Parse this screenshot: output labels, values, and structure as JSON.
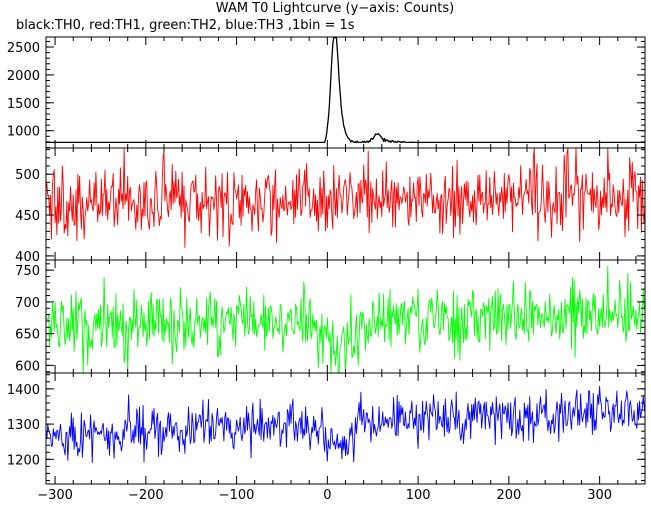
{
  "title": "WAM T0 Lightcurve (y−axis: Counts)",
  "subtitle": "black:TH0, red:TH1, green:TH2, blue:TH3 ,1bin = 1s",
  "chart_data": {
    "type": "line",
    "title": "WAM T0 Lightcurve (y−axis: Counts)",
    "subtitle": "black:TH0, red:TH1, green:TH2, blue:TH3 ,1bin = 1s",
    "xlabel": "",
    "ylabel": "Counts",
    "xlim": [
      -310,
      350
    ],
    "x_ticks": [
      "−300",
      "−200",
      "−100",
      "0",
      "100",
      "200",
      "300"
    ],
    "x_tick_values": [
      -300,
      -200,
      -100,
      0,
      100,
      200,
      300
    ],
    "bin_seconds": 1,
    "panels": [
      {
        "name": "TH0",
        "color": "#000000",
        "ylim": [
          690,
          2680
        ],
        "y_ticks": [
          "1000",
          "1500",
          "2000",
          "2500"
        ],
        "y_tick_values": [
          1000,
          1500,
          2000,
          2500
        ],
        "baseline": 760,
        "noise": 12,
        "trend": 0,
        "features": [
          {
            "center": 8,
            "amplitude": 1900,
            "width": 4
          },
          {
            "center": 14,
            "amplitude": 300,
            "width": 6
          },
          {
            "center": 55,
            "amplitude": 120,
            "width": 4
          },
          {
            "center": 60,
            "amplitude": 60,
            "width": 20
          }
        ],
        "range_pct": [
          0.05,
          0.995
        ]
      },
      {
        "name": "TH1",
        "color": "#ff0000",
        "ylim": [
          395,
          532
        ],
        "y_ticks": [
          "400",
          "450",
          "500"
        ],
        "y_tick_values": [
          400,
          450,
          500
        ],
        "baseline": 465,
        "noise": 22,
        "trend": 0.012,
        "features": [],
        "range_pct": [
          0.003,
          0.997
        ]
      },
      {
        "name": "TH2",
        "color": "#00ff00",
        "ylim": [
          588,
          766
        ],
        "y_ticks": [
          "600",
          "650",
          "700",
          "750"
        ],
        "y_tick_values": [
          600,
          650,
          700,
          750
        ],
        "baseline": 658,
        "noise": 25,
        "trend": 0.045,
        "features": [
          {
            "center": 10,
            "amplitude": -55,
            "width": 12
          }
        ],
        "range_pct": [
          0.003,
          0.997
        ]
      },
      {
        "name": "TH3",
        "color": "#0000ff",
        "ylim": [
          1130,
          1445
        ],
        "y_ticks": [
          "1200",
          "1300",
          "1400"
        ],
        "y_tick_values": [
          1200,
          1300,
          1400
        ],
        "baseline": 1268,
        "noise": 34,
        "trend": 0.11,
        "features": [
          {
            "center": 12,
            "amplitude": -60,
            "width": 14
          }
        ],
        "range_pct": [
          0.003,
          0.997
        ]
      }
    ]
  }
}
